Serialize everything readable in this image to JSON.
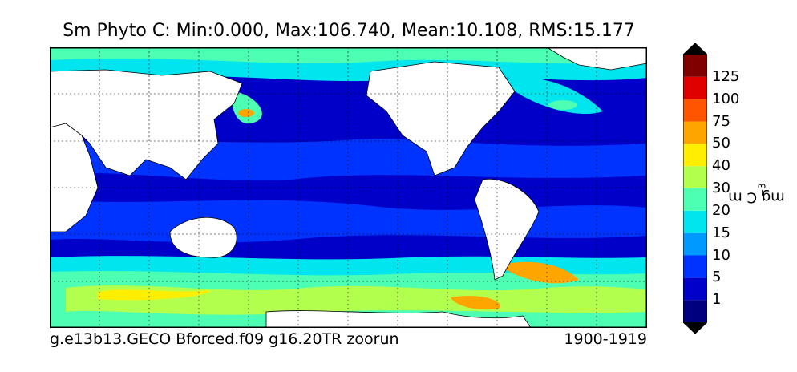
{
  "title": "Sm Phyto C: Min:0.000, Max:106.740, Mean:10.108, RMS:15.177",
  "footer": {
    "case": "g.e13b13.GECO Bforced.f09 g16.20TR zoorun",
    "years": "1900-1919"
  },
  "colorbar": {
    "units_prefix": "mg C m",
    "units_exp": "−3",
    "labels": [
      "1",
      "5",
      "10",
      "15",
      "20",
      "30",
      "40",
      "50",
      "75",
      "100",
      "125"
    ],
    "colors": [
      "#00007f",
      "#0000c8",
      "#0033ff",
      "#0099ff",
      "#00e5ee",
      "#4dffb3",
      "#b3ff4d",
      "#ffee00",
      "#ffa500",
      "#ff5500",
      "#e00000",
      "#800000"
    ]
  },
  "map": {
    "projection": "cylindrical, Pacific-centred",
    "colors": {
      "land": "#ffffff",
      "ocean_low": "#0033ff",
      "ocean_deep": "#0000c8",
      "band_mid": "#00e5ee",
      "band_high": "#4dffb3",
      "band_peak": "#ffee00",
      "band_extreme": "#ffa500"
    }
  }
}
